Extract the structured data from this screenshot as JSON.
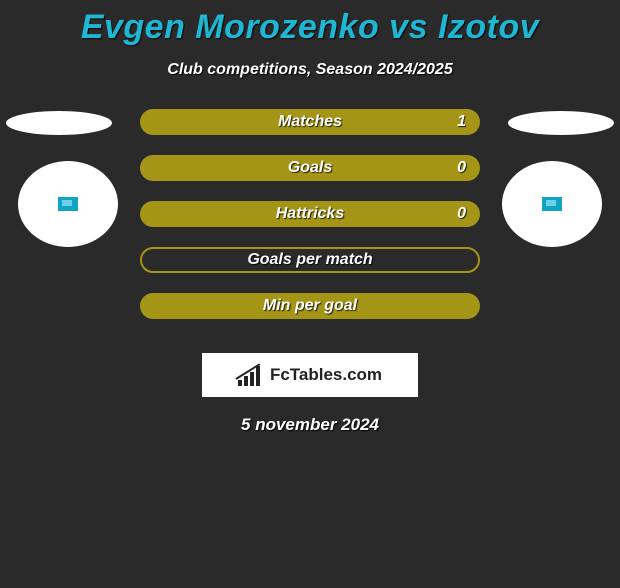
{
  "title": "Evgen Morozenko vs Izotov",
  "subtitle": "Club competitions, Season 2024/2025",
  "colors": {
    "background": "#2a2a2a",
    "title": "#1fb6d4",
    "bar_fill": "#a59516",
    "text": "#ffffff",
    "logo_box": "#ffffff",
    "logo_text": "#222222",
    "patch": "#0ea5c4"
  },
  "stats": [
    {
      "label": "Matches",
      "value": "1",
      "has_value": true,
      "filled": true
    },
    {
      "label": "Goals",
      "value": "0",
      "has_value": true,
      "filled": true
    },
    {
      "label": "Hattricks",
      "value": "0",
      "has_value": true,
      "filled": true
    },
    {
      "label": "Goals per match",
      "value": "",
      "has_value": false,
      "filled": false
    },
    {
      "label": "Min per goal",
      "value": "",
      "has_value": false,
      "filled": true
    }
  ],
  "logo": {
    "text": "FcTables.com",
    "bars": [
      6,
      10,
      14,
      20
    ]
  },
  "date": "5 november 2024"
}
